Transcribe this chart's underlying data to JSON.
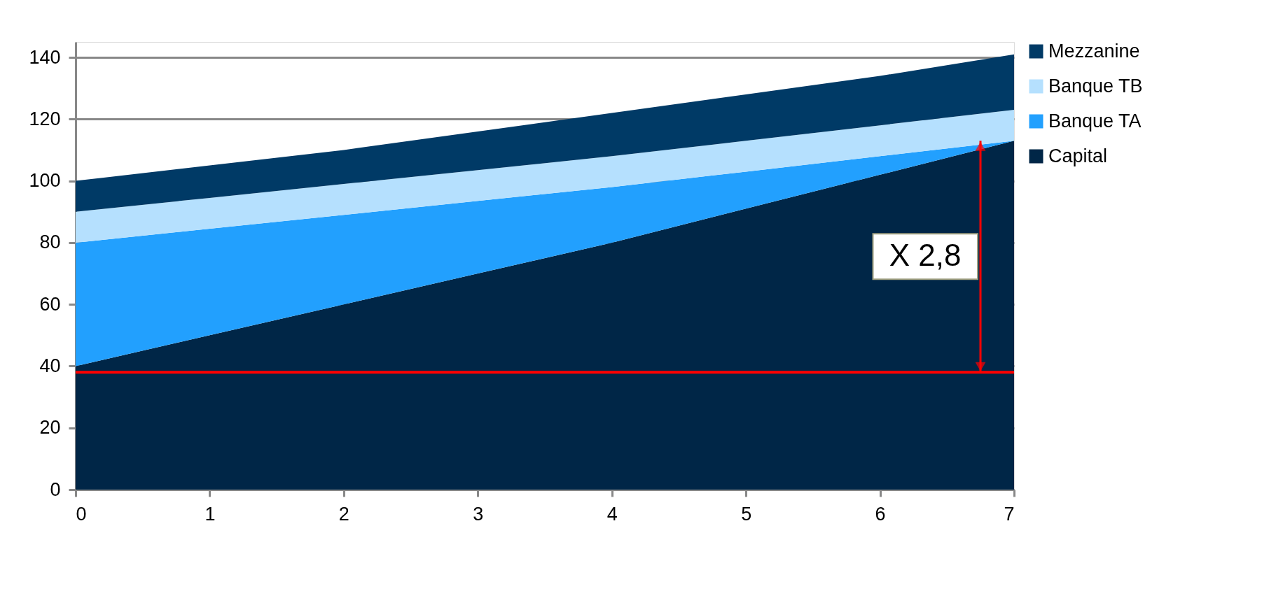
{
  "chart_data": {
    "type": "area",
    "stacked": true,
    "x": [
      0,
      1,
      2,
      3,
      4,
      5,
      6,
      7
    ],
    "series": [
      {
        "name": "Capital",
        "color": "#002647",
        "values": [
          40,
          50,
          60,
          70,
          80,
          91,
          102,
          113
        ]
      },
      {
        "name": "Banque TA",
        "color": "#22a0fe",
        "values": [
          40,
          34.5,
          29,
          23.5,
          18,
          12,
          6,
          0
        ]
      },
      {
        "name": "Banque TB",
        "color": "#b5e0fe",
        "values": [
          10,
          10,
          10,
          10,
          10,
          10,
          10,
          10
        ]
      },
      {
        "name": "Mezzanine",
        "color": "#003a66",
        "values": [
          10,
          10.5,
          11,
          12.5,
          14,
          15,
          16,
          18
        ]
      }
    ],
    "xlim": [
      0,
      7
    ],
    "xticks": [
      0,
      1,
      2,
      3,
      4,
      5,
      6,
      7
    ],
    "ylim": [
      0,
      145
    ],
    "yticks": [
      0,
      20,
      40,
      60,
      80,
      100,
      120,
      140
    ],
    "grid": "y",
    "legend": "right",
    "ref_lines": [
      {
        "axis": "y",
        "value": 38,
        "color": "#ff0000"
      }
    ],
    "annotations": [
      "X 2,8"
    ]
  }
}
